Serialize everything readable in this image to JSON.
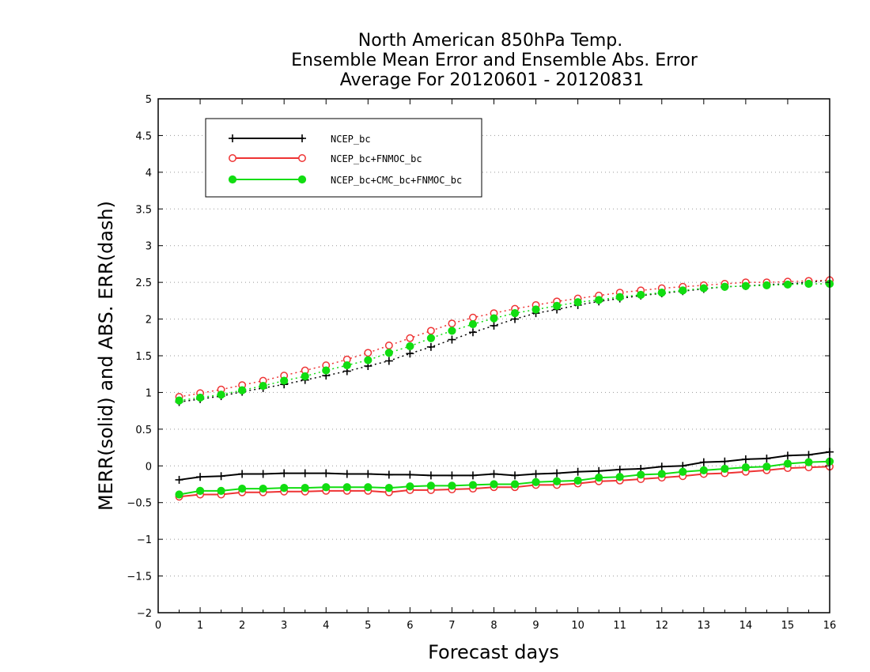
{
  "chart_data": {
    "type": "line",
    "title": [
      "North American 850hPa Temp.",
      "Ensemble Mean Error and Ensemble Abs. Error",
      "Average For 20120601 - 20120831"
    ],
    "xlabel": "Forecast days",
    "ylabel": "MERR(solid) and ABS. ERR(dash)",
    "xlim": [
      0,
      16
    ],
    "ylim": [
      -2,
      5
    ],
    "xticks": [
      0,
      1,
      2,
      3,
      4,
      5,
      6,
      7,
      8,
      9,
      10,
      11,
      12,
      13,
      14,
      15,
      16
    ],
    "yticks": [
      -2,
      -1.5,
      -1,
      -0.5,
      0,
      0.5,
      1,
      1.5,
      2,
      2.5,
      3,
      3.5,
      4,
      4.5,
      5
    ],
    "ytick_labels": [
      "−2",
      "−1.5",
      "−1",
      "−0.5",
      "0",
      "0.5",
      "1",
      "1.5",
      "2",
      "2.5",
      "3",
      "3.5",
      "4",
      "4.5",
      "5"
    ],
    "grid": "horizontal dotted",
    "legend_position": "top-left",
    "x": [
      0.5,
      1,
      1.5,
      2,
      2.5,
      3,
      3.5,
      4,
      4.5,
      5,
      5.5,
      6,
      6.5,
      7,
      7.5,
      8,
      8.5,
      9,
      9.5,
      10,
      10.5,
      11,
      11.5,
      12,
      12.5,
      13,
      13.5,
      14,
      14.5,
      15,
      15.5,
      16
    ],
    "series": [
      {
        "name": "NCEP_bc",
        "color": "#000000",
        "marker": "plus",
        "merr": [
          -0.19,
          -0.15,
          -0.14,
          -0.11,
          -0.11,
          -0.1,
          -0.1,
          -0.1,
          -0.11,
          -0.11,
          -0.12,
          -0.12,
          -0.13,
          -0.13,
          -0.13,
          -0.11,
          -0.13,
          -0.11,
          -0.1,
          -0.08,
          -0.07,
          -0.05,
          -0.04,
          -0.01,
          0.0,
          0.05,
          0.06,
          0.09,
          0.1,
          0.14,
          0.15,
          0.19
        ],
        "abs_err": [
          0.87,
          0.91,
          0.95,
          1.01,
          1.06,
          1.11,
          1.17,
          1.23,
          1.29,
          1.36,
          1.43,
          1.53,
          1.62,
          1.72,
          1.82,
          1.91,
          2.0,
          2.08,
          2.13,
          2.19,
          2.24,
          2.28,
          2.32,
          2.35,
          2.38,
          2.41,
          2.44,
          2.45,
          2.47,
          2.48,
          2.5,
          2.53
        ]
      },
      {
        "name": "NCEP_bc+FNMOC_bc",
        "color": "#ee3333",
        "marker": "open-circle",
        "merr": [
          -0.42,
          -0.39,
          -0.39,
          -0.36,
          -0.36,
          -0.35,
          -0.35,
          -0.34,
          -0.34,
          -0.34,
          -0.36,
          -0.33,
          -0.33,
          -0.32,
          -0.31,
          -0.29,
          -0.29,
          -0.26,
          -0.26,
          -0.24,
          -0.21,
          -0.2,
          -0.18,
          -0.16,
          -0.14,
          -0.11,
          -0.1,
          -0.08,
          -0.06,
          -0.03,
          -0.02,
          -0.01
        ],
        "abs_err": [
          0.94,
          0.99,
          1.04,
          1.1,
          1.16,
          1.23,
          1.3,
          1.37,
          1.45,
          1.54,
          1.64,
          1.74,
          1.84,
          1.94,
          2.02,
          2.08,
          2.14,
          2.19,
          2.24,
          2.28,
          2.32,
          2.36,
          2.39,
          2.42,
          2.44,
          2.46,
          2.48,
          2.5,
          2.5,
          2.51,
          2.52,
          2.53
        ]
      },
      {
        "name": "NCEP_bc+CMC_bc+FNMOC_bc",
        "color": "#11dd11",
        "marker": "filled-circle",
        "merr": [
          -0.39,
          -0.34,
          -0.34,
          -0.31,
          -0.31,
          -0.3,
          -0.3,
          -0.29,
          -0.29,
          -0.29,
          -0.3,
          -0.28,
          -0.27,
          -0.27,
          -0.26,
          -0.25,
          -0.25,
          -0.22,
          -0.21,
          -0.2,
          -0.16,
          -0.15,
          -0.12,
          -0.11,
          -0.08,
          -0.06,
          -0.04,
          -0.02,
          -0.01,
          0.03,
          0.05,
          0.06
        ],
        "abs_err": [
          0.89,
          0.93,
          0.97,
          1.03,
          1.09,
          1.16,
          1.22,
          1.3,
          1.37,
          1.44,
          1.54,
          1.63,
          1.74,
          1.84,
          1.93,
          2.01,
          2.08,
          2.13,
          2.18,
          2.23,
          2.26,
          2.3,
          2.33,
          2.36,
          2.39,
          2.42,
          2.44,
          2.45,
          2.46,
          2.47,
          2.48,
          2.48
        ]
      }
    ]
  }
}
